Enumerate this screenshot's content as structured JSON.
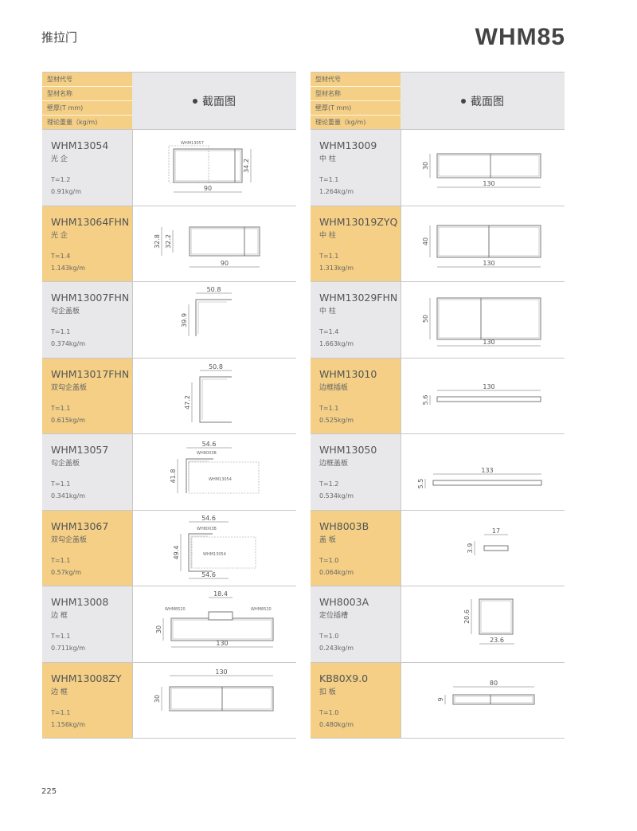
{
  "header": {
    "category": "推拉门",
    "series": "WHM85"
  },
  "table_header": {
    "labels": [
      "型材代号",
      "型材名称",
      "壁厚(T mm)",
      "理论重量（kg/m)"
    ],
    "section_title": "截面图"
  },
  "colors": {
    "orange": "#f4cf85",
    "gray": "#e8e8ea",
    "line": "#c8c8c8"
  },
  "left": {
    "rows": [
      {
        "code": "WHM13054",
        "name": "光 企",
        "thickness": "T=1.2",
        "weight": "0.91kg/m",
        "dims": [
          "90",
          "34.2"
        ],
        "callouts": [
          "WHM13057"
        ]
      },
      {
        "code": "WHM13064FHN",
        "name": "光 企",
        "thickness": "T=1.4",
        "weight": "1.143kg/m",
        "dims": [
          "90",
          "32.8",
          "32.2"
        ],
        "callouts": []
      },
      {
        "code": "WHM13007FHN",
        "name": "勾企盖板",
        "thickness": "T=1.1",
        "weight": "0.374kg/m",
        "dims": [
          "50.8",
          "39.9"
        ],
        "callouts": []
      },
      {
        "code": "WHM13017FHN",
        "name": "双勾企盖板",
        "thickness": "T=1.1",
        "weight": "0.615kg/m",
        "dims": [
          "50.8",
          "47.2"
        ],
        "callouts": []
      },
      {
        "code": "WHM13057",
        "name": "勾企盖板",
        "thickness": "T=1.1",
        "weight": "0.341kg/m",
        "dims": [
          "54.6",
          "41.8"
        ],
        "callouts": [
          "WH8003B",
          "WHM13054"
        ]
      },
      {
        "code": "WHM13067",
        "name": "双勾企盖板",
        "thickness": "T=1.1",
        "weight": "0.57kg/m",
        "dims": [
          "54.6",
          "49.4",
          "54.6"
        ],
        "callouts": [
          "WH8003B",
          "WHM13054"
        ]
      },
      {
        "code": "WHM13008",
        "name": "边 框",
        "thickness": "T=1.1",
        "weight": "0.711kg/m",
        "dims": [
          "130",
          "30",
          "18.4"
        ],
        "callouts": [
          "WHM8520",
          "WHM8520"
        ]
      },
      {
        "code": "WHM13008ZY",
        "name": "边 框",
        "thickness": "T=1.1",
        "weight": "1.156kg/m",
        "dims": [
          "130",
          "30"
        ],
        "callouts": []
      }
    ]
  },
  "right": {
    "rows": [
      {
        "code": "WHM13009",
        "name": "中 柱",
        "thickness": "T=1.1",
        "weight": "1.264kg/m",
        "dims": [
          "130",
          "30"
        ],
        "callouts": []
      },
      {
        "code": "WHM13019ZYQ",
        "name": "中 柱",
        "thickness": "T=1.1",
        "weight": "1.313kg/m",
        "dims": [
          "130",
          "40"
        ],
        "callouts": []
      },
      {
        "code": "WHM13029FHN",
        "name": "中 柱",
        "thickness": "T=1.4",
        "weight": "1.663kg/m",
        "dims": [
          "130",
          "50"
        ],
        "callouts": []
      },
      {
        "code": "WHM13010",
        "name": "边框插板",
        "thickness": "T=1.1",
        "weight": "0.525kg/m",
        "dims": [
          "130",
          "5.6"
        ],
        "callouts": []
      },
      {
        "code": "WHM13050",
        "name": "边框盖板",
        "thickness": "T=1.2",
        "weight": "0.534kg/m",
        "dims": [
          "133",
          "5.5"
        ],
        "callouts": []
      },
      {
        "code": "WH8003B",
        "name": "盖 板",
        "thickness": "T=1.0",
        "weight": "0.064kg/m",
        "dims": [
          "17",
          "3.9"
        ],
        "callouts": []
      },
      {
        "code": "WH8003A",
        "name": "定位插槽",
        "thickness": "T=1.0",
        "weight": "0.243kg/m",
        "dims": [
          "23.6",
          "20.6"
        ],
        "callouts": []
      },
      {
        "code": "KB80X9.0",
        "name": "扣 板",
        "thickness": "T=1.0",
        "weight": "0.480kg/m",
        "dims": [
          "80",
          "9"
        ],
        "callouts": []
      }
    ]
  },
  "footer": {
    "page_number": "225"
  }
}
